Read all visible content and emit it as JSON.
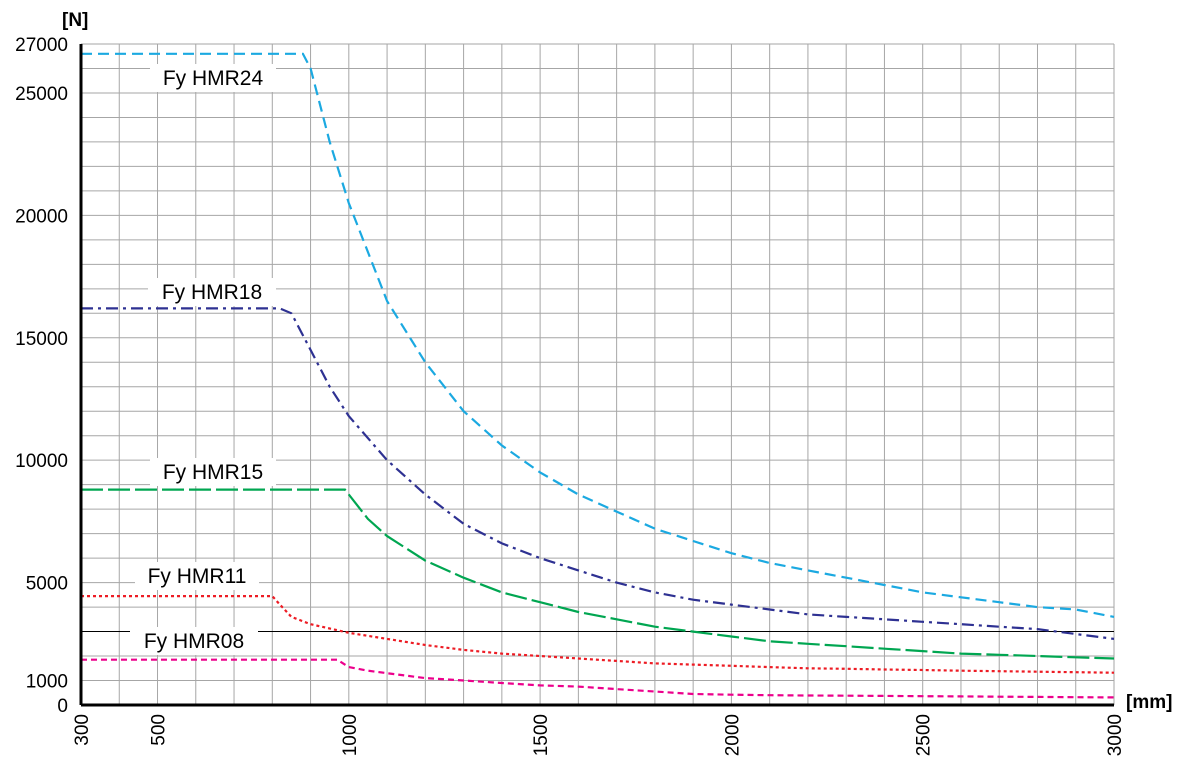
{
  "chart_data": {
    "type": "line",
    "title": "",
    "ylabel": "[N]",
    "xlabel": "[mm]",
    "xlim": [
      300,
      3000
    ],
    "ylim": [
      0,
      27000
    ],
    "grid": true,
    "x_ticks": [
      300,
      500,
      1000,
      1500,
      2000,
      2500,
      3000
    ],
    "x_tick_labels": [
      "300",
      "500",
      "1000",
      "1500",
      "2000",
      "2500",
      "3000"
    ],
    "y_ticks": [
      0,
      1000,
      5000,
      10000,
      15000,
      20000,
      25000,
      27000
    ],
    "y_tick_labels": [
      "0",
      "1000",
      "5000",
      "10000",
      "15000",
      "20000",
      "25000",
      "27000"
    ],
    "series": [
      {
        "name": "Fy HMR24",
        "color": "#1ba9e1",
        "dash": "dashed",
        "points": [
          [
            300,
            26600
          ],
          [
            880,
            26600
          ],
          [
            900,
            26000
          ],
          [
            950,
            23000
          ],
          [
            1000,
            20500
          ],
          [
            1100,
            16500
          ],
          [
            1200,
            14000
          ],
          [
            1300,
            12000
          ],
          [
            1400,
            10600
          ],
          [
            1500,
            9500
          ],
          [
            1600,
            8600
          ],
          [
            1700,
            7900
          ],
          [
            1800,
            7200
          ],
          [
            1900,
            6700
          ],
          [
            2000,
            6200
          ],
          [
            2100,
            5800
          ],
          [
            2200,
            5500
          ],
          [
            2300,
            5200
          ],
          [
            2400,
            4900
          ],
          [
            2500,
            4600
          ],
          [
            2600,
            4400
          ],
          [
            2700,
            4200
          ],
          [
            2800,
            4000
          ],
          [
            2900,
            3900
          ],
          [
            3000,
            3600
          ]
        ]
      },
      {
        "name": "Fy HMR18",
        "color": "#2e3192",
        "dash": "dashdot",
        "points": [
          [
            300,
            16200
          ],
          [
            820,
            16200
          ],
          [
            850,
            16000
          ],
          [
            900,
            14500
          ],
          [
            950,
            13000
          ],
          [
            1000,
            11800
          ],
          [
            1100,
            10000
          ],
          [
            1200,
            8600
          ],
          [
            1300,
            7400
          ],
          [
            1400,
            6600
          ],
          [
            1500,
            6000
          ],
          [
            1600,
            5500
          ],
          [
            1700,
            5000
          ],
          [
            1800,
            4600
          ],
          [
            1900,
            4300
          ],
          [
            2000,
            4100
          ],
          [
            2100,
            3900
          ],
          [
            2200,
            3700
          ],
          [
            2300,
            3600
          ],
          [
            2400,
            3500
          ],
          [
            2500,
            3400
          ],
          [
            2600,
            3300
          ],
          [
            2700,
            3200
          ],
          [
            2800,
            3100
          ],
          [
            2900,
            2900
          ],
          [
            3000,
            2700
          ]
        ]
      },
      {
        "name": "Fy HMR15",
        "color": "#00a651",
        "dash": "longdash",
        "points": [
          [
            300,
            8800
          ],
          [
            990,
            8800
          ],
          [
            1000,
            8600
          ],
          [
            1050,
            7600
          ],
          [
            1100,
            6900
          ],
          [
            1200,
            5900
          ],
          [
            1300,
            5200
          ],
          [
            1400,
            4600
          ],
          [
            1500,
            4200
          ],
          [
            1600,
            3800
          ],
          [
            1700,
            3500
          ],
          [
            1800,
            3200
          ],
          [
            1900,
            3000
          ],
          [
            2000,
            2800
          ],
          [
            2100,
            2600
          ],
          [
            2200,
            2500
          ],
          [
            2300,
            2400
          ],
          [
            2400,
            2300
          ],
          [
            2500,
            2200
          ],
          [
            2600,
            2100
          ],
          [
            2700,
            2050
          ],
          [
            2800,
            2000
          ],
          [
            2900,
            1950
          ],
          [
            3000,
            1900
          ]
        ]
      },
      {
        "name": "Fy HMR11",
        "color": "#ed1c24",
        "dash": "dotted",
        "points": [
          [
            300,
            4450
          ],
          [
            800,
            4450
          ],
          [
            820,
            4100
          ],
          [
            850,
            3600
          ],
          [
            900,
            3300
          ],
          [
            1000,
            2950
          ],
          [
            1100,
            2700
          ],
          [
            1200,
            2450
          ],
          [
            1300,
            2250
          ],
          [
            1400,
            2100
          ],
          [
            1500,
            2000
          ],
          [
            1600,
            1900
          ],
          [
            1700,
            1800
          ],
          [
            1800,
            1700
          ],
          [
            1900,
            1650
          ],
          [
            2000,
            1600
          ],
          [
            2100,
            1550
          ],
          [
            2200,
            1500
          ],
          [
            2300,
            1480
          ],
          [
            2400,
            1450
          ],
          [
            2500,
            1430
          ],
          [
            2600,
            1400
          ],
          [
            2700,
            1380
          ],
          [
            2800,
            1360
          ],
          [
            2900,
            1340
          ],
          [
            3000,
            1320
          ]
        ]
      },
      {
        "name": "Fy HMR08",
        "color": "#ec008c",
        "dash": "finedash",
        "points": [
          [
            300,
            1850
          ],
          [
            970,
            1850
          ],
          [
            1000,
            1550
          ],
          [
            1050,
            1400
          ],
          [
            1100,
            1300
          ],
          [
            1200,
            1100
          ],
          [
            1300,
            1000
          ],
          [
            1400,
            900
          ],
          [
            1500,
            800
          ],
          [
            1600,
            750
          ],
          [
            1700,
            650
          ],
          [
            1800,
            550
          ],
          [
            1900,
            450
          ],
          [
            2000,
            420
          ],
          [
            2100,
            400
          ],
          [
            2200,
            390
          ],
          [
            2300,
            380
          ],
          [
            2400,
            370
          ],
          [
            2500,
            360
          ],
          [
            2600,
            350
          ],
          [
            2700,
            340
          ],
          [
            2800,
            330
          ],
          [
            2900,
            320
          ],
          [
            3000,
            310
          ]
        ]
      }
    ]
  }
}
